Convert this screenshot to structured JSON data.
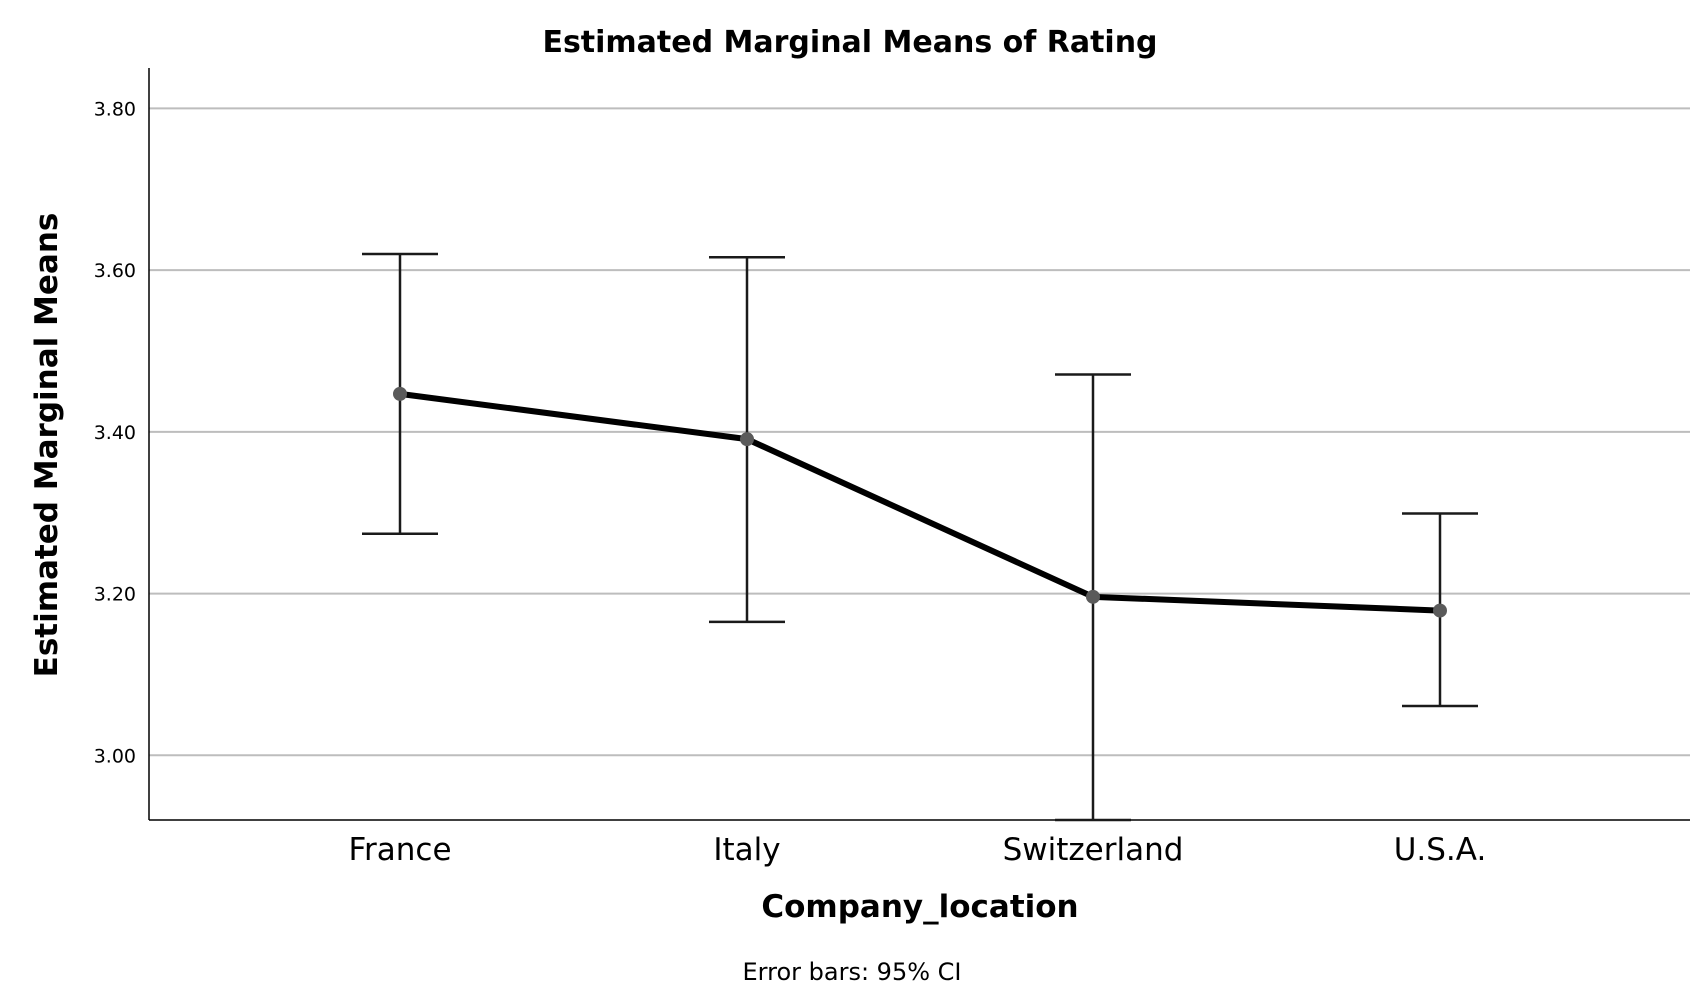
{
  "chart_data": {
    "type": "line",
    "title": "Estimated Marginal Means of Rating",
    "xlabel": "Company_location",
    "ylabel": "Estimated Marginal Means",
    "footnote": "Error bars: 95% CI",
    "categories": [
      "France",
      "Italy",
      "Switzerland",
      "U.S.A."
    ],
    "series": [
      {
        "values": [
          3.447,
          3.391,
          3.196,
          3.179
        ],
        "ci_lower": [
          3.274,
          3.165,
          2.92,
          3.061
        ],
        "ci_upper": [
          3.62,
          3.616,
          3.471,
          3.299
        ]
      }
    ],
    "y_ticks": [
      "3.00",
      "3.20",
      "3.40",
      "3.60",
      "3.80"
    ],
    "y_tick_values": [
      3.0,
      3.2,
      3.4,
      3.6,
      3.8
    ],
    "ylim": [
      2.92,
      3.85
    ],
    "grid": true,
    "colors": {
      "line": "#000000",
      "marker": "#5a5a5a",
      "grid": "#bdbdbd",
      "axis": "#000000"
    }
  }
}
